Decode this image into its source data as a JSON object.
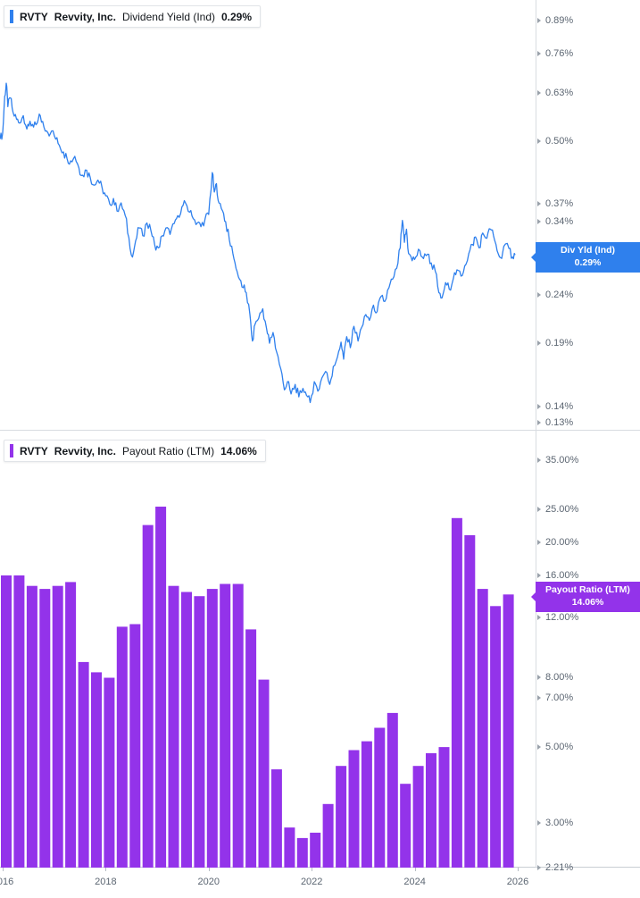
{
  "panels": {
    "dividend_yield": {
      "ticker": "RVTY",
      "company": "Revvity, Inc.",
      "metric": "Dividend Yield (Ind)",
      "value": "0.29%",
      "badge_label": "Div Yld (Ind)",
      "badge_value": "0.29%",
      "color": "#2f80ed"
    },
    "payout_ratio": {
      "ticker": "RVTY",
      "company": "Revvity, Inc.",
      "metric": "Payout Ratio (LTM)",
      "value": "14.06%",
      "badge_label": "Payout Ratio (LTM)",
      "badge_value": "14.06%",
      "color": "#9333ea"
    }
  },
  "x_axis": {
    "labels": [
      "2016",
      "2018",
      "2020",
      "2022",
      "2024",
      "2026"
    ],
    "years": [
      2016,
      2018,
      2020,
      2022,
      2024,
      2026
    ]
  },
  "chart_data": [
    {
      "type": "line",
      "title": "RVTY Revvity, Inc. Dividend Yield (Ind)",
      "unit": "%",
      "y_scale": "log",
      "color": "#2f80ed",
      "x_range": [
        2015.95,
        2026.05
      ],
      "ylim": [
        0.125,
        0.98
      ],
      "y_ticks": [
        0.89,
        0.76,
        0.63,
        0.5,
        0.37,
        0.34,
        0.24,
        0.19,
        0.14,
        0.13
      ],
      "last_value": 0.29,
      "series": [
        {
          "name": "Div Yld (Ind)",
          "points": [
            [
              2015.95,
              0.505
            ],
            [
              2016.0,
              0.52
            ],
            [
              2016.04,
              0.62
            ],
            [
              2016.07,
              0.66
            ],
            [
              2016.1,
              0.59
            ],
            [
              2016.15,
              0.615
            ],
            [
              2016.2,
              0.575
            ],
            [
              2016.27,
              0.555
            ],
            [
              2016.33,
              0.545
            ],
            [
              2016.4,
              0.565
            ],
            [
              2016.47,
              0.53
            ],
            [
              2016.53,
              0.55
            ],
            [
              2016.6,
              0.535
            ],
            [
              2016.67,
              0.545
            ],
            [
              2016.73,
              0.565
            ],
            [
              2016.8,
              0.535
            ],
            [
              2016.88,
              0.52
            ],
            [
              2016.95,
              0.525
            ],
            [
              2017.03,
              0.505
            ],
            [
              2017.1,
              0.49
            ],
            [
              2017.18,
              0.475
            ],
            [
              2017.25,
              0.46
            ],
            [
              2017.32,
              0.455
            ],
            [
              2017.4,
              0.465
            ],
            [
              2017.48,
              0.44
            ],
            [
              2017.55,
              0.425
            ],
            [
              2017.63,
              0.435
            ],
            [
              2017.7,
              0.42
            ],
            [
              2017.78,
              0.405
            ],
            [
              2017.85,
              0.415
            ],
            [
              2017.93,
              0.4
            ],
            [
              2018.0,
              0.385
            ],
            [
              2018.08,
              0.37
            ],
            [
              2018.15,
              0.38
            ],
            [
              2018.22,
              0.358
            ],
            [
              2018.3,
              0.372
            ],
            [
              2018.38,
              0.35
            ],
            [
              2018.45,
              0.315
            ],
            [
              2018.52,
              0.287
            ],
            [
              2018.58,
              0.31
            ],
            [
              2018.65,
              0.33
            ],
            [
              2018.72,
              0.318
            ],
            [
              2018.8,
              0.338
            ],
            [
              2018.88,
              0.325
            ],
            [
              2018.95,
              0.305
            ],
            [
              2019.02,
              0.3
            ],
            [
              2019.1,
              0.318
            ],
            [
              2019.17,
              0.33
            ],
            [
              2019.25,
              0.32
            ],
            [
              2019.33,
              0.337
            ],
            [
              2019.4,
              0.35
            ],
            [
              2019.48,
              0.365
            ],
            [
              2019.55,
              0.372
            ],
            [
              2019.63,
              0.356
            ],
            [
              2019.7,
              0.345
            ],
            [
              2019.78,
              0.338
            ],
            [
              2019.85,
              0.332
            ],
            [
              2019.93,
              0.345
            ],
            [
              2020.0,
              0.352
            ],
            [
              2020.07,
              0.43
            ],
            [
              2020.11,
              0.392
            ],
            [
              2020.15,
              0.408
            ],
            [
              2020.2,
              0.372
            ],
            [
              2020.27,
              0.358
            ],
            [
              2020.33,
              0.34
            ],
            [
              2020.4,
              0.312
            ],
            [
              2020.47,
              0.292
            ],
            [
              2020.53,
              0.272
            ],
            [
              2020.6,
              0.258
            ],
            [
              2020.67,
              0.248
            ],
            [
              2020.73,
              0.242
            ],
            [
              2020.8,
              0.218
            ],
            [
              2020.85,
              0.192
            ],
            [
              2020.9,
              0.208
            ],
            [
              2020.97,
              0.214
            ],
            [
              2021.05,
              0.224
            ],
            [
              2021.12,
              0.205
            ],
            [
              2021.18,
              0.19
            ],
            [
              2021.25,
              0.2
            ],
            [
              2021.32,
              0.182
            ],
            [
              2021.4,
              0.168
            ],
            [
              2021.47,
              0.152
            ],
            [
              2021.53,
              0.158
            ],
            [
              2021.6,
              0.149
            ],
            [
              2021.68,
              0.156
            ],
            [
              2021.75,
              0.147
            ],
            [
              2021.83,
              0.153
            ],
            [
              2021.9,
              0.148
            ],
            [
              2021.97,
              0.143
            ],
            [
              2022.05,
              0.158
            ],
            [
              2022.12,
              0.151
            ],
            [
              2022.2,
              0.161
            ],
            [
              2022.27,
              0.166
            ],
            [
              2022.35,
              0.156
            ],
            [
              2022.42,
              0.17
            ],
            [
              2022.5,
              0.178
            ],
            [
              2022.57,
              0.191
            ],
            [
              2022.62,
              0.176
            ],
            [
              2022.68,
              0.196
            ],
            [
              2022.75,
              0.186
            ],
            [
              2022.82,
              0.206
            ],
            [
              2022.9,
              0.192
            ],
            [
              2022.97,
              0.205
            ],
            [
              2023.05,
              0.218
            ],
            [
              2023.12,
              0.212
            ],
            [
              2023.2,
              0.228
            ],
            [
              2023.27,
              0.221
            ],
            [
              2023.35,
              0.238
            ],
            [
              2023.42,
              0.232
            ],
            [
              2023.5,
              0.248
            ],
            [
              2023.57,
              0.258
            ],
            [
              2023.65,
              0.272
            ],
            [
              2023.72,
              0.3
            ],
            [
              2023.76,
              0.342
            ],
            [
              2023.8,
              0.308
            ],
            [
              2023.84,
              0.328
            ],
            [
              2023.88,
              0.292
            ],
            [
              2023.95,
              0.282
            ],
            [
              2024.02,
              0.287
            ],
            [
              2024.1,
              0.296
            ],
            [
              2024.17,
              0.285
            ],
            [
              2024.25,
              0.291
            ],
            [
              2024.32,
              0.279
            ],
            [
              2024.4,
              0.268
            ],
            [
              2024.47,
              0.242
            ],
            [
              2024.53,
              0.236
            ],
            [
              2024.6,
              0.254
            ],
            [
              2024.67,
              0.246
            ],
            [
              2024.75,
              0.259
            ],
            [
              2024.82,
              0.27
            ],
            [
              2024.9,
              0.262
            ],
            [
              2024.97,
              0.275
            ],
            [
              2025.05,
              0.292
            ],
            [
              2025.12,
              0.305
            ],
            [
              2025.18,
              0.316
            ],
            [
              2025.25,
              0.3
            ],
            [
              2025.32,
              0.322
            ],
            [
              2025.4,
              0.314
            ],
            [
              2025.47,
              0.328
            ],
            [
              2025.53,
              0.318
            ],
            [
              2025.6,
              0.296
            ],
            [
              2025.67,
              0.286
            ],
            [
              2025.73,
              0.302
            ],
            [
              2025.83,
              0.299
            ],
            [
              2025.9,
              0.287
            ],
            [
              2025.95,
              0.29
            ]
          ]
        }
      ]
    },
    {
      "type": "bar",
      "title": "RVTY Revvity, Inc. Payout Ratio (LTM)",
      "unit": "%",
      "y_scale": "log",
      "color": "#9333ea",
      "ylim": [
        2.21,
        40
      ],
      "y_ticks": [
        35,
        25,
        20,
        16,
        12,
        8,
        7,
        5,
        3,
        2.21
      ],
      "last_value": 14.06,
      "start_year": 2016,
      "frequency": "quarterly",
      "categories": [
        "2016 Q1",
        "2016 Q2",
        "2016 Q3",
        "2016 Q4",
        "2017 Q1",
        "2017 Q2",
        "2017 Q3",
        "2017 Q4",
        "2018 Q1",
        "2018 Q2",
        "2018 Q3",
        "2018 Q4",
        "2019 Q1",
        "2019 Q2",
        "2019 Q3",
        "2019 Q4",
        "2020 Q1",
        "2020 Q2",
        "2020 Q3",
        "2020 Q4",
        "2021 Q1",
        "2021 Q2",
        "2021 Q3",
        "2021 Q4",
        "2022 Q1",
        "2022 Q2",
        "2022 Q3",
        "2022 Q4",
        "2023 Q1",
        "2023 Q2",
        "2023 Q3",
        "2023 Q4",
        "2024 Q1",
        "2024 Q2",
        "2024 Q3",
        "2024 Q4",
        "2025 Q1",
        "2025 Q2",
        "2025 Q3",
        "2025 Q4"
      ],
      "values": [
        16.0,
        16.0,
        14.9,
        14.6,
        14.9,
        15.3,
        8.9,
        8.3,
        8.0,
        11.3,
        11.5,
        22.5,
        25.5,
        14.9,
        14.3,
        13.9,
        14.6,
        15.1,
        15.1,
        11.1,
        7.9,
        4.3,
        2.9,
        2.7,
        2.8,
        3.4,
        4.4,
        4.9,
        5.2,
        5.7,
        6.3,
        3.9,
        4.4,
        4.8,
        5.0,
        23.6,
        21.0,
        14.6,
        13.0,
        14.06
      ]
    }
  ]
}
